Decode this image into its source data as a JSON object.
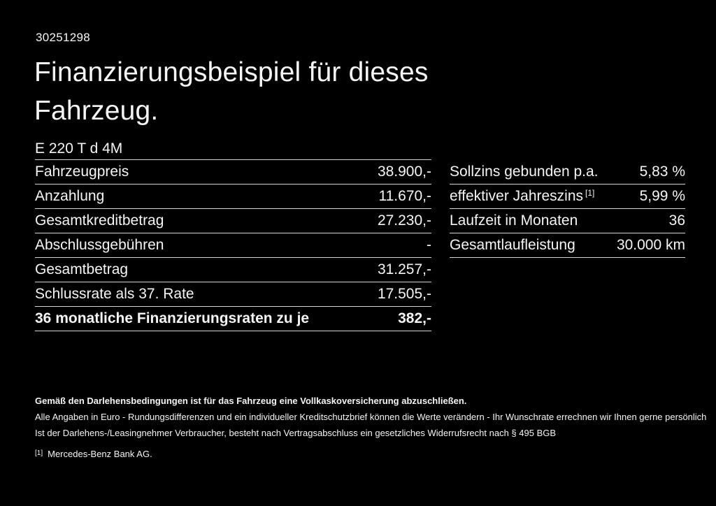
{
  "page": {
    "doc_number": "30251298",
    "title_line1": "Finanzierungsbeispiel für dieses",
    "title_line2": "Fahrzeug."
  },
  "colors": {
    "background": "#000000",
    "text": "#f5f5f5",
    "divider": "#d6d6d6"
  },
  "left_table": {
    "header": "E 220 T d 4M",
    "rows": [
      {
        "label": "Fahrzeugpreis",
        "value": "38.900,-"
      },
      {
        "label": "Anzahlung",
        "value": "11.670,-"
      },
      {
        "label": "Gesamtkreditbetrag",
        "value": "27.230,-"
      },
      {
        "label": "Abschlussgebühren",
        "value": "-"
      },
      {
        "label": "Gesamtbetrag",
        "value": "31.257,-"
      },
      {
        "label": "Schlussrate als 37. Rate",
        "value": "17.505,-"
      },
      {
        "label": "36 monatliche Finanzierungsraten zu je",
        "value": "382,-"
      }
    ]
  },
  "right_table": {
    "rows": [
      {
        "label": "Sollzins gebunden p.a.",
        "value": "5,83 %"
      },
      {
        "label": "effektiver Jahreszins",
        "sup": "[1]",
        "value": "5,99 %"
      },
      {
        "label": "Laufzeit in Monaten",
        "value": "36"
      },
      {
        "label": "Gesamtlaufleistung",
        "value": "30.000 km"
      }
    ]
  },
  "footer": {
    "insurance_note": "Gemäß den Darlehensbedingungen ist für das Fahrzeug eine Vollkaskoversicherung abzuschließen.",
    "disclaimer_line1": "Alle Angaben in Euro - Rundungsdifferenzen und ein individueller Kreditschutzbrief können die Werte verändern - Ihr Wunschrate errechnen wir Ihnen gerne persönlich",
    "disclaimer_line2": "Ist der Darlehens-/Leasingnehmer Verbraucher, besteht nach Vertragsabschluss ein gesetzliches Widerrufsrecht nach § 495 BGB",
    "footnote_marker": "[1]",
    "footnote_text": "Mercedes-Benz Bank AG."
  }
}
